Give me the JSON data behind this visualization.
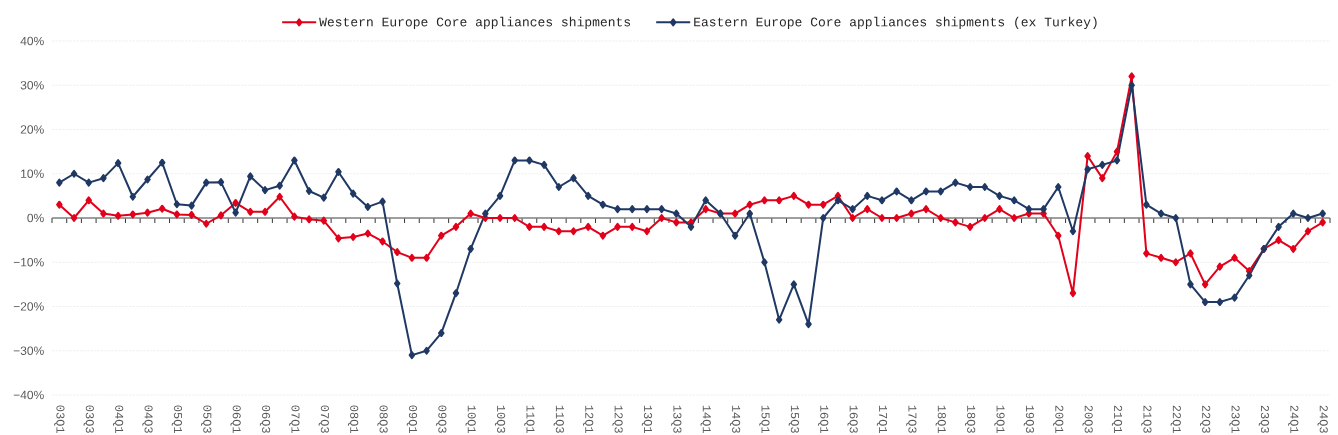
{
  "chart_data": {
    "type": "line",
    "categories": [
      "03Q1",
      null,
      "03Q3",
      null,
      "04Q1",
      null,
      "04Q3",
      null,
      "05Q1",
      null,
      "05Q3",
      null,
      "06Q1",
      null,
      "06Q3",
      null,
      "07Q1",
      null,
      "07Q3",
      null,
      "08Q1",
      null,
      "08Q3",
      null,
      "09Q1",
      null,
      "09Q3",
      null,
      "10Q1",
      null,
      "10Q3",
      null,
      "11Q1",
      null,
      "11Q3",
      null,
      "12Q1",
      null,
      "12Q3",
      null,
      "13Q1",
      null,
      "13Q3",
      null,
      "14Q1",
      null,
      "14Q3",
      null,
      "15Q1",
      null,
      "15Q3",
      null,
      "16Q1",
      null,
      "16Q3",
      null,
      "17Q1",
      null,
      "17Q3",
      null,
      "18Q1",
      null,
      "18Q3",
      null,
      "19Q1",
      null,
      "19Q3",
      null,
      "20Q1",
      null,
      "20Q3",
      null,
      "21Q1",
      null,
      "21Q3",
      null,
      "22Q1",
      null,
      "22Q3",
      null,
      "23Q1",
      null,
      "23Q3",
      null,
      "24Q1",
      null,
      "24Q3"
    ],
    "series": [
      {
        "name": "Western Europe Core appliances shipments",
        "color": "#e2001a",
        "values": [
          3,
          0,
          4,
          1,
          0.5,
          0.8,
          1.2,
          2.1,
          0.8,
          0.7,
          -1.3,
          0.6,
          3.4,
          1.4,
          1.4,
          4.8,
          0.3,
          -0.3,
          -0.6,
          -4.6,
          -4.3,
          -3.5,
          -5.3,
          -7.7,
          -9,
          -9,
          -4,
          -2,
          1,
          0,
          0,
          0,
          -2,
          -2,
          -3,
          -3,
          -2,
          -4,
          -2,
          -2,
          -3,
          0,
          -1,
          -1,
          2,
          1,
          1,
          3,
          4,
          4,
          5,
          3,
          3,
          5,
          0,
          2,
          0,
          0,
          1,
          2,
          0,
          -1,
          -2,
          0,
          2,
          0,
          1,
          1,
          -4,
          -17,
          14,
          9,
          15,
          32,
          -8,
          -9,
          -10,
          -8,
          -15,
          -11,
          -9,
          -12,
          -7,
          -5,
          -7,
          -3,
          -1
        ]
      },
      {
        "name": "Eastern Europe Core appliances shipments (ex Turkey)",
        "color": "#1f3864",
        "values": [
          8,
          10,
          8,
          9,
          12.4,
          4.8,
          8.7,
          12.5,
          3.1,
          2.8,
          8,
          8.1,
          1.2,
          9.4,
          6.3,
          7.3,
          13,
          6.1,
          4.6,
          10.4,
          5.5,
          2.5,
          3.7,
          -14.8,
          -31,
          -30,
          -26,
          -17,
          -7,
          1,
          5,
          13,
          13,
          12,
          7,
          9,
          5,
          3,
          2,
          2,
          2,
          2,
          1,
          -2,
          4,
          1,
          -4,
          1,
          -10,
          -23,
          -15,
          -24,
          0,
          4,
          2,
          5,
          4,
          6,
          4,
          6,
          6,
          8,
          7,
          7,
          5,
          4,
          2,
          2,
          7,
          -3,
          11,
          12,
          13,
          30,
          3,
          1,
          0,
          -15,
          -19,
          -19,
          -18,
          -13,
          -7,
          -2,
          1,
          0,
          1
        ]
      }
    ],
    "ylim": [
      -40,
      40
    ],
    "yticks": [
      {
        "value": -40,
        "label": "−40%"
      },
      {
        "value": -30,
        "label": "−30%"
      },
      {
        "value": -20,
        "label": "−20%"
      },
      {
        "value": -10,
        "label": "−10%"
      },
      {
        "value": 0,
        "label": "0%"
      },
      {
        "value": 10,
        "label": "10%"
      },
      {
        "value": 20,
        "label": "20%"
      },
      {
        "value": 30,
        "label": "30%"
      },
      {
        "value": 40,
        "label": "40%"
      }
    ],
    "grid": "y",
    "legend": "top",
    "marker": "diamond",
    "line_style": "solid"
  }
}
